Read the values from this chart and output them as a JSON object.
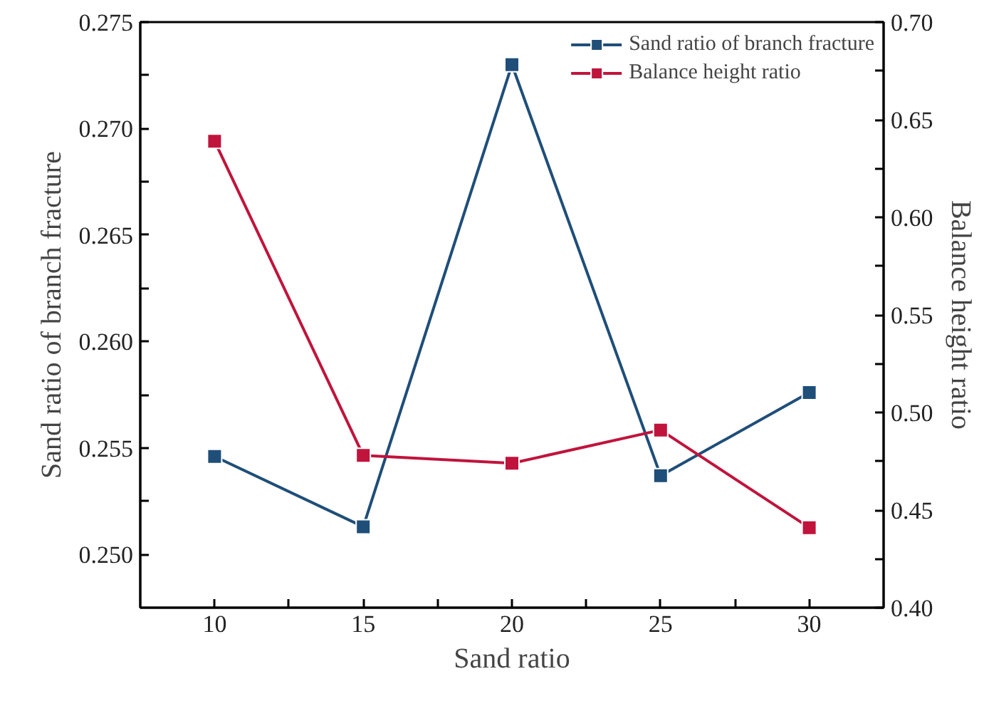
{
  "chart_data": {
    "type": "line",
    "xlabel": "Sand ratio",
    "ylabel": "Sand ratio of branch fracture",
    "y2label": "Balance height ratio",
    "x": [
      10,
      15,
      20,
      25,
      30
    ],
    "series": [
      {
        "name": "Sand ratio of branch fracture",
        "color": "#1f4e79",
        "values": [
          0.2546,
          0.2513,
          0.273,
          0.2537,
          0.2576
        ]
      },
      {
        "name": "Balance height ratio",
        "color": "#c0143c",
        "axis": "y2",
        "values": [
          0.639,
          0.478,
          0.474,
          0.491,
          0.441
        ]
      }
    ],
    "xlim": [
      7.5,
      32.5
    ],
    "xticks": [
      10,
      {
        "value": 12.5,
        "label": null
      },
      15,
      {
        "value": 17.5,
        "label": null
      },
      20,
      {
        "value": 22.5,
        "label": null
      },
      25,
      {
        "value": 27.5,
        "label": null
      },
      30
    ],
    "ylim": [
      0.2475,
      0.275
    ],
    "yticks": [
      {
        "value": 0.25,
        "label": "0.250"
      },
      {
        "value": 0.2525,
        "label": null
      },
      {
        "value": 0.255,
        "label": "0.255"
      },
      {
        "value": 0.2575,
        "label": null
      },
      {
        "value": 0.26,
        "label": "0.260"
      },
      {
        "value": 0.2625,
        "label": null
      },
      {
        "value": 0.265,
        "label": "0.265"
      },
      {
        "value": 0.2675,
        "label": null
      },
      {
        "value": 0.27,
        "label": "0.270"
      },
      {
        "value": 0.2725,
        "label": null
      },
      {
        "value": 0.275,
        "label": "0.275"
      }
    ],
    "y2lim": [
      0.4,
      0.7
    ],
    "y2ticks": [
      {
        "value": 0.4,
        "label": "0.40"
      },
      {
        "value": 0.425,
        "label": null
      },
      {
        "value": 0.45,
        "label": "0.45"
      },
      {
        "value": 0.475,
        "label": null
      },
      {
        "value": 0.5,
        "label": "0.50"
      },
      {
        "value": 0.525,
        "label": null
      },
      {
        "value": 0.55,
        "label": "0.55"
      },
      {
        "value": 0.575,
        "label": null
      },
      {
        "value": 0.6,
        "label": "0.60"
      },
      {
        "value": 0.625,
        "label": null
      },
      {
        "value": 0.65,
        "label": "0.65"
      },
      {
        "value": 0.675,
        "label": null
      },
      {
        "value": 0.7,
        "label": "0.70"
      }
    ],
    "legend": "top right",
    "marker": "square",
    "line_style": "solid",
    "grid": false
  }
}
